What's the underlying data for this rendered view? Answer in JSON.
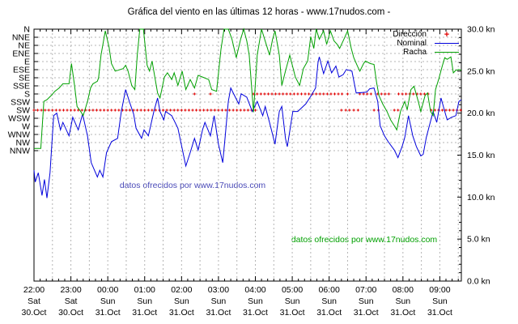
{
  "title": "Gráfica del viento en las últimas 12 horas - www.17nudos.com -",
  "watermarks": {
    "blue_text": "datos ofrecidos por www.17nudos.com",
    "green_text": "datos ofrecidos por www.17nudos.com"
  },
  "legend": {
    "direction_label": "Dirección",
    "nominal_label": "Nominal",
    "racha_label": "Racha",
    "direction_marker": "+"
  },
  "colors": {
    "direction": "#e10000",
    "nominal": "#0000dc",
    "racha": "#00a000",
    "grid": "#b4b4b4",
    "axis": "#000000",
    "watermark_blue": "#4a4ab8",
    "watermark_green": "#00a000"
  },
  "chart_data": {
    "type": "line",
    "title": "Gráfica del viento en las últimas 12 horas - www.17nudos.com -",
    "grid": true,
    "legend_position": "top-right-inside",
    "y_left_axis": {
      "labels": [
        "N",
        "NNE",
        "NE",
        "ENE",
        "E",
        "ESE",
        "SE",
        "SSE",
        "S",
        "SSW",
        "SW",
        "WSW",
        "W",
        "WNW",
        "NW",
        "NNW"
      ]
    },
    "y_right_axis": {
      "min": 0,
      "max": 30,
      "minor_step_kn": 1,
      "major_ticks": [
        {
          "value": 30,
          "label": "30.0 kn"
        },
        {
          "value": 25,
          "label": "25.0 kn"
        },
        {
          "value": 20,
          "label": "20.0 kn"
        },
        {
          "value": 15,
          "label": "15.0 kn"
        },
        {
          "value": 10,
          "label": "10.0 kn"
        },
        {
          "value": 5,
          "label": "5.0 kn"
        },
        {
          "value": 0,
          "label": "0.0 kn"
        }
      ]
    },
    "x_axis": {
      "total_minutes": 695,
      "minor_tick_minutes": 10,
      "grid_minutes": 30,
      "hours": [
        {
          "m": 0,
          "time": "22:00",
          "day": "Sat",
          "date": "30.Oct"
        },
        {
          "m": 60,
          "time": "23:00",
          "day": "Sat",
          "date": "30.Oct"
        },
        {
          "m": 120,
          "time": "00:00",
          "day": "Sun",
          "date": "31.Oct"
        },
        {
          "m": 180,
          "time": "01:00",
          "day": "Sun",
          "date": "31.Oct"
        },
        {
          "m": 240,
          "time": "02:00",
          "day": "Sun",
          "date": "31.Oct"
        },
        {
          "m": 300,
          "time": "03:00",
          "day": "Sun",
          "date": "31.Oct"
        },
        {
          "m": 360,
          "time": "04:00",
          "day": "Sun",
          "date": "31.Oct"
        },
        {
          "m": 420,
          "time": "05:00",
          "day": "Sun",
          "date": "31.Oct"
        },
        {
          "m": 480,
          "time": "06:00",
          "day": "Sun",
          "date": "31.Oct"
        },
        {
          "m": 540,
          "time": "07:00",
          "day": "Sun",
          "date": "31.Oct"
        },
        {
          "m": 600,
          "time": "08:00",
          "day": "Sun",
          "date": "31.Oct"
        },
        {
          "m": 660,
          "time": "09:00",
          "day": "Sun",
          "date": "31.Oct"
        }
      ]
    },
    "series": [
      {
        "name": "Dirección",
        "type": "points",
        "color_key": "direction",
        "marker": "plus",
        "segments": [
          {
            "dir": "SW",
            "from": 0,
            "to": 363,
            "step": 6
          },
          {
            "dir": "S",
            "at": [
              261,
              287
            ]
          },
          {
            "dir": "S",
            "from": 357,
            "to": 505,
            "step": 6
          },
          {
            "dir": "S",
            "at": [
              510
            ]
          },
          {
            "dir": "SW",
            "at": [
              500,
              507,
              513,
              520,
              527
            ]
          },
          {
            "dir": "S",
            "from": 530,
            "to": 548,
            "step": 6
          },
          {
            "dir": "SW",
            "at": [
              553,
              560,
              586,
              592
            ]
          },
          {
            "dir": "S",
            "from": 559,
            "to": 580,
            "step": 6
          },
          {
            "dir": "S",
            "from": 593,
            "to": 642,
            "step": 6
          },
          {
            "dir": "SW",
            "from": 646,
            "to": 694,
            "step": 6
          }
        ]
      },
      {
        "name": "Nominal",
        "type": "line",
        "color_key": "nominal",
        "unit": "kn",
        "points": [
          [
            0,
            13.2
          ],
          [
            2,
            11.8
          ],
          [
            7,
            12.9
          ],
          [
            13,
            10.2
          ],
          [
            17,
            12.1
          ],
          [
            21,
            9.9
          ],
          [
            26,
            12.9
          ],
          [
            32,
            19.7
          ],
          [
            37,
            20.0
          ],
          [
            43,
            18.0
          ],
          [
            47,
            18.9
          ],
          [
            57,
            17.3
          ],
          [
            63,
            19.5
          ],
          [
            72,
            18.0
          ],
          [
            79,
            19.9
          ],
          [
            87,
            17.3
          ],
          [
            93,
            14.1
          ],
          [
            103,
            12.4
          ],
          [
            107,
            13.2
          ],
          [
            112,
            12.4
          ],
          [
            118,
            15.3
          ],
          [
            126,
            16.6
          ],
          [
            136,
            17.0
          ],
          [
            142,
            20.2
          ],
          [
            149,
            22.8
          ],
          [
            155,
            21.4
          ],
          [
            162,
            19.9
          ],
          [
            166,
            18.2
          ],
          [
            175,
            17.0
          ],
          [
            179,
            18.0
          ],
          [
            186,
            17.3
          ],
          [
            195,
            20.2
          ],
          [
            201,
            21.8
          ],
          [
            205,
            20.2
          ],
          [
            211,
            19.2
          ],
          [
            214,
            20.2
          ],
          [
            224,
            19.7
          ],
          [
            234,
            18.2
          ],
          [
            247,
            13.7
          ],
          [
            254,
            15.3
          ],
          [
            261,
            17.0
          ],
          [
            267,
            15.6
          ],
          [
            274,
            18.0
          ],
          [
            278,
            18.9
          ],
          [
            287,
            17.3
          ],
          [
            293,
            19.7
          ],
          [
            300,
            16.3
          ],
          [
            307,
            14.1
          ],
          [
            311,
            17.3
          ],
          [
            316,
            21.4
          ],
          [
            320,
            23.0
          ],
          [
            326,
            22.1
          ],
          [
            333,
            21.1
          ],
          [
            337,
            22.3
          ],
          [
            346,
            21.9
          ],
          [
            355,
            20.2
          ],
          [
            363,
            21.4
          ],
          [
            372,
            19.7
          ],
          [
            376,
            20.8
          ],
          [
            383,
            18.9
          ],
          [
            392,
            16.3
          ],
          [
            399,
            20.2
          ],
          [
            403,
            20.8
          ],
          [
            409,
            17.0
          ],
          [
            412,
            16.0
          ],
          [
            421,
            20.2
          ],
          [
            429,
            20.2
          ],
          [
            442,
            21.1
          ],
          [
            451,
            22.1
          ],
          [
            458,
            23.0
          ],
          [
            462,
            26.1
          ],
          [
            464,
            26.7
          ],
          [
            471,
            24.7
          ],
          [
            478,
            26.2
          ],
          [
            484,
            24.8
          ],
          [
            491,
            25.6
          ],
          [
            496,
            24.3
          ],
          [
            503,
            24.6
          ],
          [
            508,
            25.2
          ],
          [
            517,
            25.0
          ],
          [
            524,
            22.4
          ],
          [
            541,
            22.5
          ],
          [
            546,
            22.9
          ],
          [
            553,
            23.0
          ],
          [
            559,
            21.4
          ],
          [
            563,
            18.5
          ],
          [
            570,
            17.3
          ],
          [
            576,
            16.6
          ],
          [
            586,
            15.6
          ],
          [
            592,
            14.7
          ],
          [
            599,
            16.1
          ],
          [
            603,
            17.1
          ],
          [
            609,
            19.7
          ],
          [
            616,
            17.3
          ],
          [
            622,
            16.0
          ],
          [
            629,
            14.9
          ],
          [
            633,
            15.1
          ],
          [
            638,
            17.1
          ],
          [
            642,
            18.2
          ],
          [
            649,
            20.2
          ],
          [
            655,
            18.9
          ],
          [
            662,
            21.8
          ],
          [
            668,
            20.2
          ],
          [
            672,
            19.2
          ],
          [
            679,
            19.5
          ],
          [
            686,
            19.7
          ],
          [
            691,
            21.4
          ],
          [
            695,
            21.6
          ]
        ]
      },
      {
        "name": "Racha",
        "type": "line",
        "color_key": "racha",
        "unit": "kn",
        "points": [
          [
            0,
            15.8
          ],
          [
            11,
            15.8
          ],
          [
            16,
            21.4
          ],
          [
            21,
            21.6
          ],
          [
            28,
            22.1
          ],
          [
            34,
            22.6
          ],
          [
            41,
            23.0
          ],
          [
            47,
            23.5
          ],
          [
            57,
            23.5
          ],
          [
            61,
            25.9
          ],
          [
            66,
            23.3
          ],
          [
            70,
            20.8
          ],
          [
            76,
            20.2
          ],
          [
            80,
            19.7
          ],
          [
            87,
            21.4
          ],
          [
            92,
            23.0
          ],
          [
            96,
            23.5
          ],
          [
            103,
            23.8
          ],
          [
            105,
            24.2
          ],
          [
            109,
            26.9
          ],
          [
            116,
            29.8
          ],
          [
            122,
            27.9
          ],
          [
            126,
            25.9
          ],
          [
            132,
            25.0
          ],
          [
            145,
            25.3
          ],
          [
            149,
            25.7
          ],
          [
            153,
            25.0
          ],
          [
            159,
            23.3
          ],
          [
            164,
            22.8
          ],
          [
            168,
            26.9
          ],
          [
            172,
            30.0
          ],
          [
            178,
            30.0
          ],
          [
            184,
            25.7
          ],
          [
            188,
            25.0
          ],
          [
            192,
            26.2
          ],
          [
            201,
            22.4
          ],
          [
            205,
            21.8
          ],
          [
            212,
            24.3
          ],
          [
            217,
            24.8
          ],
          [
            224,
            24.0
          ],
          [
            228,
            24.8
          ],
          [
            234,
            23.3
          ],
          [
            241,
            25.0
          ],
          [
            247,
            22.8
          ],
          [
            254,
            24.0
          ],
          [
            261,
            23.0
          ],
          [
            267,
            24.5
          ],
          [
            274,
            24.3
          ],
          [
            284,
            24.0
          ],
          [
            289,
            22.8
          ],
          [
            297,
            22.6
          ],
          [
            304,
            27.6
          ],
          [
            309,
            30.0
          ],
          [
            316,
            30.0
          ],
          [
            322,
            28.8
          ],
          [
            329,
            26.6
          ],
          [
            336,
            28.8
          ],
          [
            341,
            30.0
          ],
          [
            346,
            28.6
          ],
          [
            350,
            26.9
          ],
          [
            357,
            20.1
          ],
          [
            363,
            26.9
          ],
          [
            370,
            30.0
          ],
          [
            379,
            27.9
          ],
          [
            383,
            26.9
          ],
          [
            388,
            28.8
          ],
          [
            392,
            29.8
          ],
          [
            399,
            26.9
          ],
          [
            403,
            23.3
          ],
          [
            409,
            25.0
          ],
          [
            416,
            26.9
          ],
          [
            425,
            24.3
          ],
          [
            432,
            23.3
          ],
          [
            438,
            25.3
          ],
          [
            445,
            26.2
          ],
          [
            450,
            29.1
          ],
          [
            455,
            27.7
          ],
          [
            459,
            30.0
          ],
          [
            464,
            28.8
          ],
          [
            471,
            29.8
          ],
          [
            476,
            28.2
          ],
          [
            482,
            29.8
          ],
          [
            488,
            28.6
          ],
          [
            493,
            28.2
          ],
          [
            497,
            27.7
          ],
          [
            504,
            28.8
          ],
          [
            510,
            29.8
          ],
          [
            516,
            27.7
          ],
          [
            520,
            26.6
          ],
          [
            526,
            25.6
          ],
          [
            530,
            25.0
          ],
          [
            536,
            25.9
          ],
          [
            539,
            26.2
          ],
          [
            547,
            25.9
          ],
          [
            553,
            25.8
          ],
          [
            557,
            23.7
          ],
          [
            561,
            22.1
          ],
          [
            567,
            21.1
          ],
          [
            574,
            20.2
          ],
          [
            580,
            19.2
          ],
          [
            586,
            18.5
          ],
          [
            590,
            18.0
          ],
          [
            596,
            20.2
          ],
          [
            603,
            21.4
          ],
          [
            607,
            20.4
          ],
          [
            613,
            22.8
          ],
          [
            618,
            23.2
          ],
          [
            625,
            21.4
          ],
          [
            629,
            20.2
          ],
          [
            636,
            22.1
          ],
          [
            640,
            22.4
          ],
          [
            645,
            20.2
          ],
          [
            649,
            19.7
          ],
          [
            653,
            22.8
          ],
          [
            658,
            24.0
          ],
          [
            664,
            25.6
          ],
          [
            668,
            26.6
          ],
          [
            672,
            26.4
          ],
          [
            678,
            26.7
          ],
          [
            682,
            24.8
          ],
          [
            686,
            25.1
          ],
          [
            691,
            25.2
          ],
          [
            695,
            25.1
          ]
        ]
      }
    ]
  }
}
